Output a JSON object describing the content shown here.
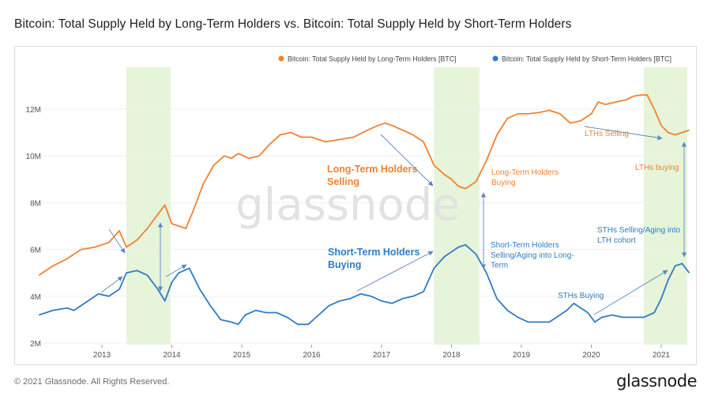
{
  "title": "Bitcoin: Total Supply Held by Long-Term Holders vs. Bitcoin: Total Supply Held by Short-Term Holders",
  "footer": "© 2021 Glassnode. All Rights Reserved.",
  "brand": "glassnode",
  "watermark": "glassnode",
  "colors": {
    "lth": "#f0822f",
    "sth": "#2e7cc3",
    "shade": "#e6f4d9",
    "arrow": "#5a86c4"
  },
  "chart_data": {
    "type": "line",
    "title": "Bitcoin: Total Supply Held by Long-Term Holders vs. Bitcoin: Total Supply Held by Short-Term Holders",
    "xlabel": "",
    "ylabel": "",
    "xlim": [
      2012.1,
      2021.45
    ],
    "ylim": [
      2000000,
      13000000
    ],
    "x_ticks": [
      "2013",
      "2014",
      "2015",
      "2016",
      "2017",
      "2018",
      "2019",
      "2020",
      "2021"
    ],
    "y_ticks": [
      "2M",
      "4M",
      "6M",
      "8M",
      "10M",
      "12M"
    ],
    "y_tick_values": [
      2000000,
      4000000,
      6000000,
      8000000,
      10000000,
      12000000
    ],
    "grid": "horizontal",
    "legend_position": "top-right",
    "shaded_periods": [
      [
        2013.35,
        2013.98
      ],
      [
        2017.75,
        2018.4
      ],
      [
        2020.75,
        2021.45
      ]
    ],
    "series": [
      {
        "name": "Bitcoin: Total Supply Held by Long-Term Holders [BTC]",
        "x": [
          2012.1,
          2012.3,
          2012.5,
          2012.7,
          2012.9,
          2013.1,
          2013.25,
          2013.35,
          2013.5,
          2013.65,
          2013.8,
          2013.9,
          2014.0,
          2014.1,
          2014.2,
          2014.3,
          2014.45,
          2014.6,
          2014.75,
          2014.85,
          2014.95,
          2015.1,
          2015.25,
          2015.4,
          2015.55,
          2015.7,
          2015.85,
          2016.0,
          2016.2,
          2016.4,
          2016.6,
          2016.8,
          2016.95,
          2017.05,
          2017.15,
          2017.3,
          2017.45,
          2017.6,
          2017.75,
          2017.9,
          2018.0,
          2018.1,
          2018.2,
          2018.35,
          2018.5,
          2018.65,
          2018.8,
          2018.95,
          2019.1,
          2019.25,
          2019.4,
          2019.55,
          2019.7,
          2019.85,
          2020.0,
          2020.1,
          2020.2,
          2020.35,
          2020.5,
          2020.6,
          2020.7,
          2020.8,
          2020.9,
          2021.0,
          2021.1,
          2021.2,
          2021.3,
          2021.4
        ],
        "values": [
          4900000,
          5300000,
          5600000,
          6000000,
          6100000,
          6300000,
          6800000,
          6100000,
          6400000,
          6900000,
          7500000,
          7900000,
          7100000,
          7000000,
          6900000,
          7600000,
          8800000,
          9600000,
          10000000,
          9900000,
          10100000,
          9900000,
          10000000,
          10500000,
          10900000,
          11000000,
          10800000,
          10800000,
          10600000,
          10700000,
          10800000,
          11100000,
          11300000,
          11400000,
          11300000,
          11100000,
          10900000,
          10600000,
          9600000,
          9200000,
          9000000,
          8700000,
          8600000,
          8900000,
          9800000,
          10900000,
          11600000,
          11800000,
          11800000,
          11850000,
          11950000,
          11800000,
          11400000,
          11500000,
          11800000,
          12300000,
          12200000,
          12300000,
          12400000,
          12550000,
          12600000,
          12600000,
          12000000,
          11300000,
          11000000,
          10900000,
          11000000,
          11100000
        ]
      },
      {
        "name": "Bitcoin: Total Supply Held by Short-Term Holders [BTC]",
        "x": [
          2012.1,
          2012.3,
          2012.5,
          2012.6,
          2012.8,
          2012.95,
          2013.1,
          2013.25,
          2013.35,
          2013.5,
          2013.65,
          2013.8,
          2013.9,
          2014.0,
          2014.1,
          2014.25,
          2014.4,
          2014.55,
          2014.7,
          2014.85,
          2014.95,
          2015.05,
          2015.2,
          2015.35,
          2015.5,
          2015.65,
          2015.8,
          2015.95,
          2016.1,
          2016.25,
          2016.4,
          2016.55,
          2016.7,
          2016.85,
          2017.0,
          2017.15,
          2017.3,
          2017.45,
          2017.6,
          2017.75,
          2017.9,
          2018.0,
          2018.1,
          2018.2,
          2018.35,
          2018.5,
          2018.65,
          2018.8,
          2018.95,
          2019.1,
          2019.25,
          2019.4,
          2019.55,
          2019.65,
          2019.75,
          2019.85,
          2019.95,
          2020.05,
          2020.15,
          2020.3,
          2020.45,
          2020.6,
          2020.75,
          2020.9,
          2021.0,
          2021.1,
          2021.2,
          2021.3,
          2021.4
        ],
        "values": [
          3200000,
          3400000,
          3500000,
          3400000,
          3800000,
          4100000,
          4000000,
          4300000,
          5000000,
          5100000,
          4900000,
          4300000,
          3800000,
          4600000,
          5000000,
          5200000,
          4300000,
          3600000,
          3000000,
          2900000,
          2800000,
          3200000,
          3400000,
          3300000,
          3300000,
          3100000,
          2800000,
          2800000,
          3200000,
          3600000,
          3800000,
          3900000,
          4100000,
          4000000,
          3800000,
          3700000,
          3900000,
          4000000,
          4200000,
          5200000,
          5700000,
          5900000,
          6100000,
          6200000,
          5800000,
          5000000,
          3900000,
          3400000,
          3100000,
          2900000,
          2900000,
          2900000,
          3200000,
          3400000,
          3700000,
          3500000,
          3300000,
          2900000,
          3100000,
          3200000,
          3100000,
          3100000,
          3100000,
          3300000,
          3900000,
          4700000,
          5300000,
          5400000,
          5000000
        ]
      }
    ],
    "annotations": [
      {
        "text": "Long-Term Holders\nSelling",
        "color": "lth",
        "bold": true
      },
      {
        "text": "Long-Term Holders\nBuying",
        "color": "lth",
        "bold": false
      },
      {
        "text": "LTHs Selling",
        "color": "lth",
        "bold": false
      },
      {
        "text": "LTHs buying",
        "color": "lth",
        "bold": false
      },
      {
        "text": "Short-Term Holders\nBuying",
        "color": "sth",
        "bold": true
      },
      {
        "text": "Short-Term Holders\nSelling/Aging into Long-\nTerm",
        "color": "sth",
        "bold": false
      },
      {
        "text": "STHs Buying",
        "color": "sth",
        "bold": false
      },
      {
        "text": "STHs Selling/Aging into\nLTH cohort",
        "color": "sth",
        "bold": false
      }
    ]
  }
}
